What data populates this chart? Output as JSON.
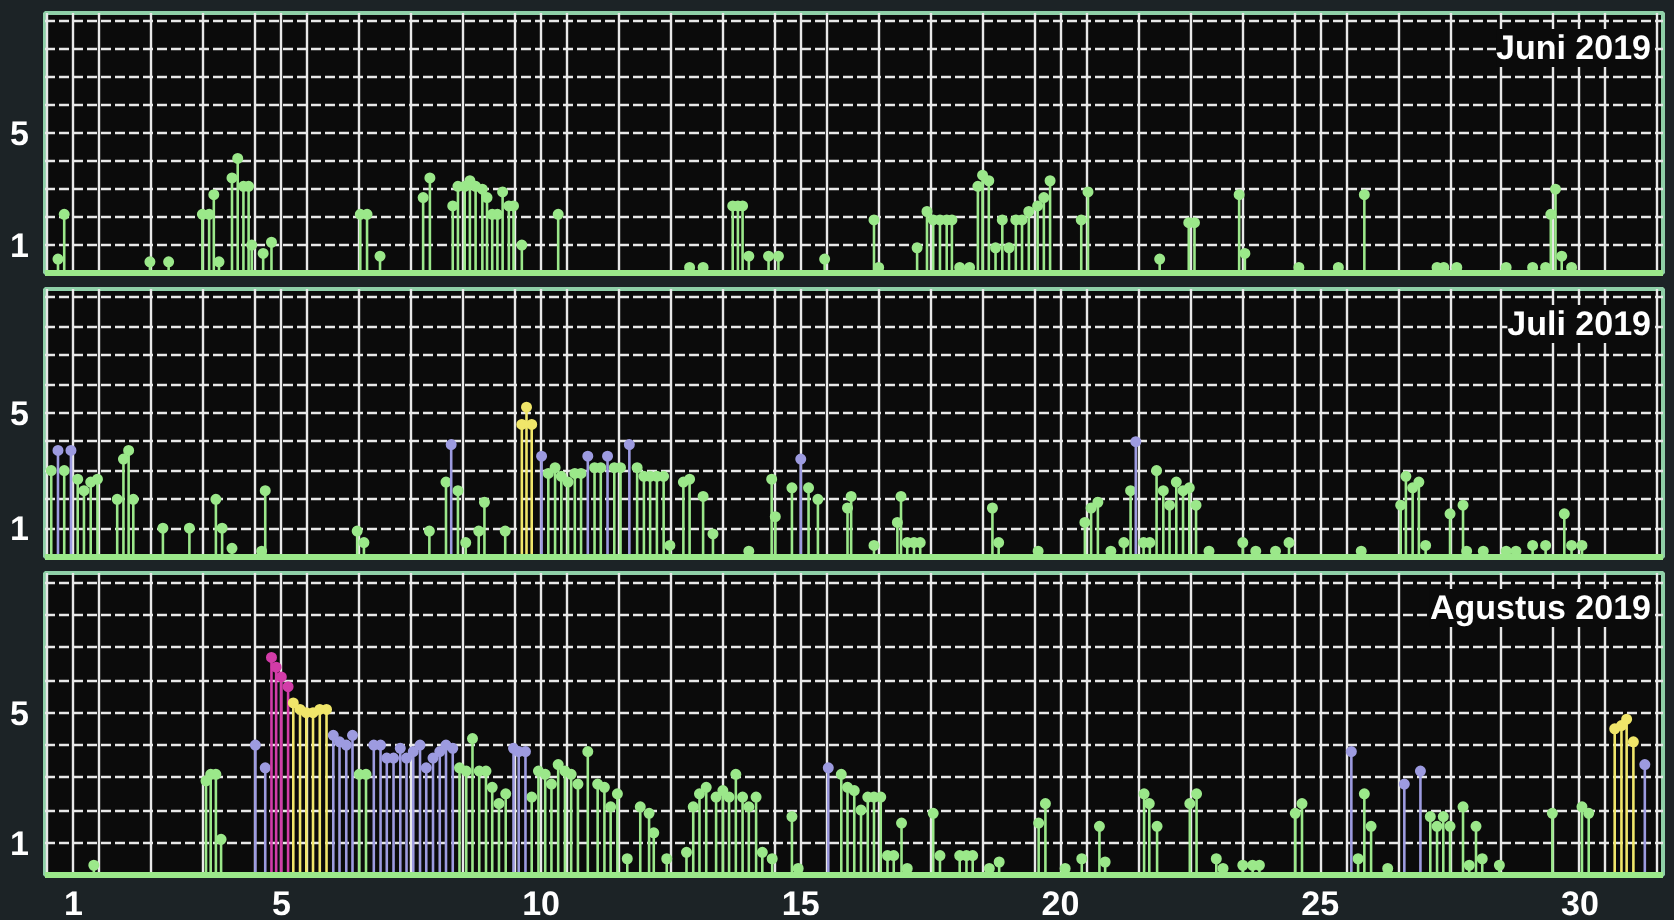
{
  "chart_data": [
    {
      "type": "lollipop",
      "title": "Juni 2019",
      "xlim": [
        0.45,
        31.6
      ],
      "ylim": [
        0,
        9.3
      ],
      "marker": "circle",
      "grid": true,
      "tick_labels": "y",
      "xticks": [
        1,
        5,
        10,
        15,
        20,
        25,
        30,
        {
          "value": 0.5,
          "label": null
        },
        {
          "value": 1.5,
          "label": null
        },
        {
          "value": 2.5,
          "label": null
        },
        {
          "value": 3.5,
          "label": null
        },
        {
          "value": 4.5,
          "label": null
        },
        {
          "value": 5.5,
          "label": null
        },
        {
          "value": 6.5,
          "label": null
        },
        {
          "value": 7.5,
          "label": null
        },
        {
          "value": 8.5,
          "label": null
        },
        {
          "value": 9.5,
          "label": null
        },
        {
          "value": 10.5,
          "label": null
        },
        {
          "value": 11.5,
          "label": null
        },
        {
          "value": 12.5,
          "label": null
        },
        {
          "value": 13.5,
          "label": null
        },
        {
          "value": 14.5,
          "label": null
        },
        {
          "value": 15.5,
          "label": null
        },
        {
          "value": 16.5,
          "label": null
        },
        {
          "value": 17.5,
          "label": null
        },
        {
          "value": 18.5,
          "label": null
        },
        {
          "value": 19.5,
          "label": null
        },
        {
          "value": 20.5,
          "label": null
        },
        {
          "value": 21.5,
          "label": null
        },
        {
          "value": 22.5,
          "label": null
        },
        {
          "value": 23.5,
          "label": null
        },
        {
          "value": 24.5,
          "label": null
        },
        {
          "value": 25.5,
          "label": null
        },
        {
          "value": 26.5,
          "label": null
        },
        {
          "value": 27.5,
          "label": null
        },
        {
          "value": 28.5,
          "label": null
        },
        {
          "value": 29.5,
          "label": null
        },
        {
          "value": 30.5,
          "label": null
        },
        {
          "value": 31.5,
          "label": null
        }
      ],
      "yticks": [
        1,
        5,
        {
          "value": 2,
          "label": null
        },
        {
          "value": 3,
          "label": null
        },
        {
          "value": 4,
          "label": null
        },
        {
          "value": 6,
          "label": null
        },
        {
          "value": 7,
          "label": null
        },
        {
          "value": 8,
          "label": null
        },
        {
          "value": 9,
          "label": null
        }
      ],
      "series": [
        {
          "color": "#9be88a",
          "x": [
            0.7,
            0.82,
            2.47,
            2.83,
            3.48,
            3.61,
            3.7,
            3.8,
            4.05,
            4.16,
            4.27,
            4.37,
            4.43,
            4.65,
            4.81,
            6.52,
            6.65,
            6.9,
            7.73,
            7.86,
            8.3,
            8.4,
            8.53,
            8.63,
            8.74,
            8.87,
            8.96,
            9.06,
            9.16,
            9.26,
            9.38,
            9.47,
            9.63,
            10.33,
            12.86,
            13.12,
            13.69,
            13.79,
            13.88,
            14.0,
            14.38,
            14.57,
            15.46,
            16.41,
            16.5,
            17.24,
            17.43,
            17.55,
            17.68,
            17.81,
            17.91,
            18.06,
            18.25,
            18.41,
            18.5,
            18.62,
            18.75,
            18.88,
            19.01,
            19.14,
            19.26,
            19.39,
            19.56,
            19.68,
            19.8,
            20.4,
            20.53,
            21.91,
            22.47,
            22.58,
            23.44,
            23.55,
            24.59,
            25.35,
            25.85,
            27.25,
            27.38,
            27.63,
            28.58,
            29.09,
            29.34,
            29.44,
            29.53,
            29.65,
            29.84
          ],
          "values": [
            0.5,
            2.1,
            0.4,
            0.4,
            2.1,
            2.1,
            2.8,
            0.4,
            3.4,
            4.1,
            3.1,
            3.1,
            1.0,
            0.7,
            1.1,
            2.1,
            2.1,
            0.6,
            2.7,
            3.4,
            2.4,
            3.1,
            3.1,
            3.3,
            3.1,
            3.0,
            2.7,
            2.1,
            2.1,
            2.9,
            2.4,
            2.4,
            1.0,
            2.1,
            0.2,
            0.2,
            2.4,
            2.4,
            2.4,
            0.6,
            0.6,
            0.6,
            0.5,
            1.9,
            0.2,
            0.9,
            2.2,
            1.9,
            1.9,
            1.9,
            1.9,
            0.2,
            0.2,
            3.1,
            3.5,
            3.3,
            0.9,
            1.9,
            0.9,
            1.9,
            1.9,
            2.2,
            2.4,
            2.7,
            3.3,
            1.9,
            2.9,
            0.5,
            1.8,
            1.8,
            2.8,
            0.7,
            0.2,
            0.2,
            2.8,
            0.2,
            0.2,
            0.2,
            0.2,
            0.2,
            0.2,
            2.1,
            3.0,
            0.6,
            0.2
          ]
        }
      ]
    },
    {
      "type": "lollipop",
      "title": "Juli 2019",
      "xlim": [
        0.45,
        31.6
      ],
      "ylim": [
        0,
        9.3
      ],
      "marker": "circle",
      "grid": true,
      "tick_labels": "y",
      "xticks": [
        1,
        5,
        10,
        15,
        20,
        25,
        30,
        {
          "value": 0.5,
          "label": null
        },
        {
          "value": 1.5,
          "label": null
        },
        {
          "value": 2.5,
          "label": null
        },
        {
          "value": 3.5,
          "label": null
        },
        {
          "value": 4.5,
          "label": null
        },
        {
          "value": 5.5,
          "label": null
        },
        {
          "value": 6.5,
          "label": null
        },
        {
          "value": 7.5,
          "label": null
        },
        {
          "value": 8.5,
          "label": null
        },
        {
          "value": 9.5,
          "label": null
        },
        {
          "value": 10.5,
          "label": null
        },
        {
          "value": 11.5,
          "label": null
        },
        {
          "value": 12.5,
          "label": null
        },
        {
          "value": 13.5,
          "label": null
        },
        {
          "value": 14.5,
          "label": null
        },
        {
          "value": 15.5,
          "label": null
        },
        {
          "value": 16.5,
          "label": null
        },
        {
          "value": 17.5,
          "label": null
        },
        {
          "value": 18.5,
          "label": null
        },
        {
          "value": 19.5,
          "label": null
        },
        {
          "value": 20.5,
          "label": null
        },
        {
          "value": 21.5,
          "label": null
        },
        {
          "value": 22.5,
          "label": null
        },
        {
          "value": 23.5,
          "label": null
        },
        {
          "value": 24.5,
          "label": null
        },
        {
          "value": 25.5,
          "label": null
        },
        {
          "value": 26.5,
          "label": null
        },
        {
          "value": 27.5,
          "label": null
        },
        {
          "value": 28.5,
          "label": null
        },
        {
          "value": 29.5,
          "label": null
        },
        {
          "value": 30.5,
          "label": null
        },
        {
          "value": 31.5,
          "label": null
        }
      ],
      "yticks": [
        1,
        5,
        {
          "value": 2,
          "label": null
        },
        {
          "value": 3,
          "label": null
        },
        {
          "value": 4,
          "label": null
        },
        {
          "value": 6,
          "label": null
        },
        {
          "value": 7,
          "label": null
        },
        {
          "value": 8,
          "label": null
        },
        {
          "value": 9,
          "label": null
        }
      ],
      "series": [
        {
          "color": "#9be88a",
          "x": [
            0.57,
            0.82,
            1.08,
            1.2,
            1.33,
            1.46,
            1.84,
            1.96,
            2.06,
            2.15,
            2.72,
            3.23,
            3.74,
            3.86,
            4.05,
            4.62,
            4.69,
            6.46,
            6.59,
            7.85,
            8.17,
            8.4,
            8.55,
            8.8,
            8.91,
            9.31,
            10.14,
            10.27,
            10.39,
            10.52,
            10.65,
            10.77,
            11.03,
            11.15,
            11.41,
            11.53,
            11.85,
            11.98,
            12.1,
            12.23,
            12.36,
            12.48,
            12.74,
            12.86,
            13.12,
            13.31,
            14.0,
            14.44,
            14.51,
            14.83,
            15.15,
            15.33,
            15.9,
            15.97,
            16.41,
            16.86,
            16.93,
            17.05,
            17.18,
            17.3,
            18.69,
            18.81,
            19.57,
            20.47,
            20.59,
            20.72,
            20.97,
            21.22,
            21.35,
            21.6,
            21.72,
            21.85,
            21.98,
            22.1,
            22.23,
            22.36,
            22.48,
            22.61,
            22.86,
            23.51,
            23.76,
            24.14,
            24.4,
            25.79,
            26.55,
            26.65,
            26.78,
            26.9,
            27.03,
            27.5,
            27.75,
            27.82,
            28.14,
            28.58,
            28.77,
            29.09,
            29.34,
            29.7,
            29.84,
            30.04
          ],
          "values": [
            3.0,
            3.0,
            2.7,
            2.3,
            2.6,
            2.7,
            2.0,
            3.4,
            3.7,
            2.0,
            1.0,
            1.0,
            2.0,
            1.0,
            0.3,
            0.2,
            2.3,
            0.9,
            0.5,
            0.9,
            2.6,
            2.3,
            0.5,
            0.9,
            1.9,
            0.9,
            2.9,
            3.1,
            2.8,
            2.6,
            2.9,
            2.9,
            3.1,
            3.1,
            3.1,
            3.1,
            3.1,
            2.8,
            2.8,
            2.8,
            2.8,
            0.4,
            2.6,
            2.7,
            2.1,
            0.8,
            0.2,
            2.7,
            1.4,
            2.4,
            2.4,
            2.0,
            1.7,
            2.1,
            0.4,
            1.2,
            2.1,
            0.5,
            0.5,
            0.5,
            1.7,
            0.5,
            0.2,
            1.2,
            1.7,
            1.9,
            0.2,
            0.5,
            2.3,
            0.5,
            0.5,
            3.0,
            2.3,
            1.8,
            2.6,
            2.3,
            2.4,
            1.8,
            0.2,
            0.5,
            0.2,
            0.2,
            0.5,
            0.2,
            1.8,
            2.8,
            2.4,
            2.6,
            0.4,
            1.5,
            1.8,
            0.2,
            0.2,
            0.2,
            0.2,
            0.4,
            0.4,
            1.5,
            0.4,
            0.4
          ]
        },
        {
          "color": "#9d9be0",
          "x": [
            0.7,
            0.95,
            8.27,
            10.01,
            10.9,
            11.28,
            11.7,
            15.0,
            21.45
          ],
          "values": [
            3.7,
            3.7,
            3.9,
            3.5,
            3.5,
            3.5,
            3.9,
            3.4,
            4.0
          ]
        },
        {
          "color": "#f0e66a",
          "x": [
            9.63,
            9.72,
            9.82
          ],
          "values": [
            4.6,
            5.2,
            4.6
          ]
        }
      ]
    },
    {
      "type": "lollipop",
      "title": "Agustus 2019",
      "xlim": [
        0.45,
        31.6
      ],
      "ylim": [
        0,
        9.3
      ],
      "marker": "circle",
      "grid": true,
      "xticks": [
        1,
        5,
        10,
        15,
        20,
        25,
        30,
        {
          "value": 0.5,
          "label": null
        },
        {
          "value": 1.5,
          "label": null
        },
        {
          "value": 2.5,
          "label": null
        },
        {
          "value": 3.5,
          "label": null
        },
        {
          "value": 4.5,
          "label": null
        },
        {
          "value": 5.5,
          "label": null
        },
        {
          "value": 6.5,
          "label": null
        },
        {
          "value": 7.5,
          "label": null
        },
        {
          "value": 8.5,
          "label": null
        },
        {
          "value": 9.5,
          "label": null
        },
        {
          "value": 10.5,
          "label": null
        },
        {
          "value": 11.5,
          "label": null
        },
        {
          "value": 12.5,
          "label": null
        },
        {
          "value": 13.5,
          "label": null
        },
        {
          "value": 14.5,
          "label": null
        },
        {
          "value": 15.5,
          "label": null
        },
        {
          "value": 16.5,
          "label": null
        },
        {
          "value": 17.5,
          "label": null
        },
        {
          "value": 18.5,
          "label": null
        },
        {
          "value": 19.5,
          "label": null
        },
        {
          "value": 20.5,
          "label": null
        },
        {
          "value": 21.5,
          "label": null
        },
        {
          "value": 22.5,
          "label": null
        },
        {
          "value": 23.5,
          "label": null
        },
        {
          "value": 24.5,
          "label": null
        },
        {
          "value": 25.5,
          "label": null
        },
        {
          "value": 26.5,
          "label": null
        },
        {
          "value": 27.5,
          "label": null
        },
        {
          "value": 28.5,
          "label": null
        },
        {
          "value": 29.5,
          "label": null
        },
        {
          "value": 30.5,
          "label": null
        },
        {
          "value": 31.5,
          "label": null
        }
      ],
      "yticks": [
        1,
        5,
        {
          "value": 2,
          "label": null
        },
        {
          "value": 3,
          "label": null
        },
        {
          "value": 4,
          "label": null
        },
        {
          "value": 6,
          "label": null
        },
        {
          "value": 7,
          "label": null
        },
        {
          "value": 8,
          "label": null
        },
        {
          "value": 9,
          "label": null
        }
      ],
      "series": [
        {
          "color": "#9be88a",
          "x": [
            1.39,
            3.55,
            3.64,
            3.74,
            3.84,
            6.5,
            6.63,
            8.43,
            8.56,
            8.68,
            8.81,
            8.94,
            9.06,
            9.19,
            9.32,
            9.82,
            9.95,
            10.08,
            10.2,
            10.33,
            10.46,
            10.58,
            10.71,
            10.9,
            11.09,
            11.22,
            11.34,
            11.47,
            11.66,
            11.91,
            12.08,
            12.17,
            12.42,
            12.8,
            12.93,
            13.05,
            13.18,
            13.37,
            13.5,
            13.62,
            13.75,
            13.88,
            14.0,
            14.14,
            14.26,
            14.45,
            14.83,
            14.95,
            15.78,
            15.9,
            16.03,
            16.16,
            16.29,
            16.41,
            16.54,
            16.67,
            16.79,
            16.94,
            17.05,
            17.55,
            17.68,
            18.06,
            18.19,
            18.31,
            18.63,
            18.82,
            19.58,
            19.71,
            20.09,
            20.41,
            20.75,
            20.86,
            21.61,
            21.71,
            21.86,
            22.49,
            22.62,
            23.0,
            23.13,
            23.51,
            23.7,
            23.83,
            24.52,
            24.65,
            25.73,
            25.85,
            25.98,
            26.3,
            27.12,
            27.25,
            27.37,
            27.5,
            27.75,
            27.87,
            28.0,
            28.12,
            28.45,
            29.47,
            30.04,
            30.17
          ],
          "values": [
            0.3,
            2.9,
            3.1,
            3.1,
            1.1,
            3.1,
            3.1,
            3.3,
            3.2,
            4.2,
            3.2,
            3.2,
            2.7,
            2.2,
            2.5,
            2.4,
            3.2,
            3.1,
            2.8,
            3.4,
            3.2,
            3.1,
            2.8,
            3.8,
            2.8,
            2.7,
            2.1,
            2.5,
            0.5,
            2.1,
            1.9,
            1.3,
            0.5,
            0.7,
            2.1,
            2.5,
            2.7,
            2.4,
            2.6,
            2.4,
            3.1,
            2.4,
            2.1,
            2.4,
            0.7,
            0.5,
            1.8,
            0.2,
            3.1,
            2.7,
            2.6,
            2.0,
            2.4,
            2.4,
            2.4,
            0.6,
            0.6,
            1.6,
            0.2,
            1.9,
            0.6,
            0.6,
            0.6,
            0.6,
            0.2,
            0.4,
            1.6,
            2.2,
            0.2,
            0.5,
            1.5,
            0.4,
            2.5,
            2.2,
            1.5,
            2.2,
            2.5,
            0.5,
            0.2,
            0.3,
            0.3,
            0.3,
            1.9,
            2.2,
            0.5,
            2.5,
            1.5,
            0.2,
            1.8,
            1.5,
            1.8,
            1.5,
            2.1,
            0.3,
            1.5,
            0.5,
            0.3,
            1.9,
            2.1,
            1.9
          ]
        },
        {
          "color": "#9d9be0",
          "x": [
            4.5,
            4.69,
            6.0,
            6.12,
            6.25,
            6.37,
            6.78,
            6.91,
            7.03,
            7.16,
            7.29,
            7.41,
            7.54,
            7.67,
            7.79,
            7.92,
            8.05,
            8.17,
            8.3,
            9.47,
            9.57,
            9.7,
            15.53,
            25.6,
            26.62,
            26.93,
            31.25
          ],
          "values": [
            4.0,
            3.3,
            4.3,
            4.1,
            4.0,
            4.3,
            4.0,
            4.0,
            3.6,
            3.6,
            3.9,
            3.6,
            3.8,
            4.0,
            3.3,
            3.6,
            3.8,
            4.0,
            3.9,
            3.9,
            3.8,
            3.8,
            3.3,
            3.8,
            2.8,
            3.2,
            3.4
          ]
        },
        {
          "color": "#d23ca8",
          "x": [
            4.81,
            4.9,
            5.0,
            5.13
          ],
          "values": [
            6.7,
            6.4,
            6.1,
            5.8
          ]
        },
        {
          "color": "#f0e66a",
          "x": [
            5.23,
            5.36,
            5.48,
            5.61,
            5.74,
            5.87,
            30.67,
            30.8,
            30.9,
            31.03
          ],
          "values": [
            5.3,
            5.1,
            5.0,
            5.0,
            5.1,
            5.1,
            4.5,
            4.6,
            4.8,
            4.1
          ]
        }
      ]
    }
  ]
}
